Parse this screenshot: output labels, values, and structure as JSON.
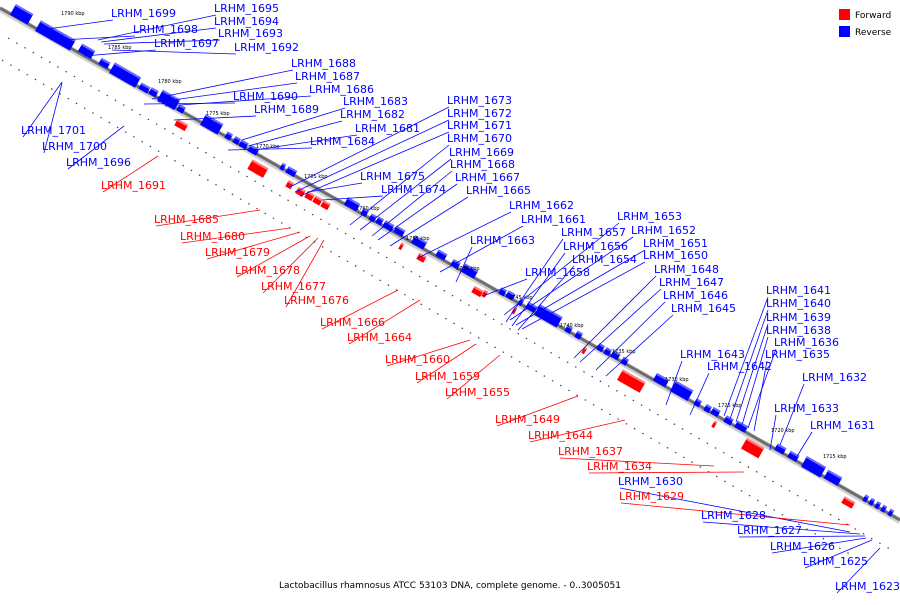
{
  "caption": "Lactobacillus rhamnosus ATCC 53103 DNA, complete genome. - 0..3005051",
  "legend": {
    "forward_label": "Forward",
    "reverse_label": "Reverse",
    "forward_color": "#ff0000",
    "reverse_color": "#0000ff"
  },
  "ticks": [
    "1790 kbp",
    "1785 kbp",
    "1780 kbp",
    "1775 kbp",
    "1770 kbp",
    "1765 kbp",
    "1760 kbp",
    "1755 kbp",
    "1750 kbp",
    "1745 kbp",
    "1740 kbp",
    "1735 kbp",
    "1730 kbp",
    "1725 kbp",
    "1720 kbp",
    "1715 kbp"
  ],
  "reverse_labels": [
    "LRHM_1695",
    "LRHM_1694",
    "LRHM_1693",
    "LRHM_1692",
    "LRHM_1699",
    "LRHM_1698",
    "LRHM_1697",
    "LRHM_1688",
    "LRHM_1687",
    "LRHM_1686",
    "LRHM_1690",
    "LRHM_1689",
    "LRHM_1683",
    "LRHM_1682",
    "LRHM_1681",
    "LRHM_1684",
    "LRHM_1673",
    "LRHM_1672",
    "LRHM_1671",
    "LRHM_1670",
    "LRHM_1669",
    "LRHM_1668",
    "LRHM_1667",
    "LRHM_1665",
    "LRHM_1675",
    "LRHM_1674",
    "LRHM_1662",
    "LRHM_1661",
    "LRHM_1663",
    "LRHM_1653",
    "LRHM_1652",
    "LRHM_1651",
    "LRHM_1650",
    "LRHM_1657",
    "LRHM_1656",
    "LRHM_1654",
    "LRHM_1658",
    "LRHM_1648",
    "LRHM_1647",
    "LRHM_1646",
    "LRHM_1645",
    "LRHM_1641",
    "LRHM_1640",
    "LRHM_1639",
    "LRHM_1638",
    "LRHM_1636",
    "LRHM_1635",
    "LRHM_1643",
    "LRHM_1642",
    "LRHM_1632",
    "LRHM_1633",
    "LRHM_1631",
    "LRHM_1701",
    "LRHM_1700",
    "LRHM_1696",
    "LRHM_1630",
    "LRHM_1628",
    "LRHM_1627",
    "LRHM_1626",
    "LRHM_1625",
    "LRHM_1623"
  ],
  "forward_labels": [
    "LRHM_1691",
    "LRHM_1685",
    "LRHM_1680",
    "LRHM_1679",
    "LRHM_1678",
    "LRHM_1677",
    "LRHM_1676",
    "LRHM_1666",
    "LRHM_1664",
    "LRHM_1660",
    "LRHM_1659",
    "LRHM_1655",
    "LRHM_1649",
    "LRHM_1644",
    "LRHM_1637",
    "LRHM_1634",
    "LRHM_1629"
  ]
}
